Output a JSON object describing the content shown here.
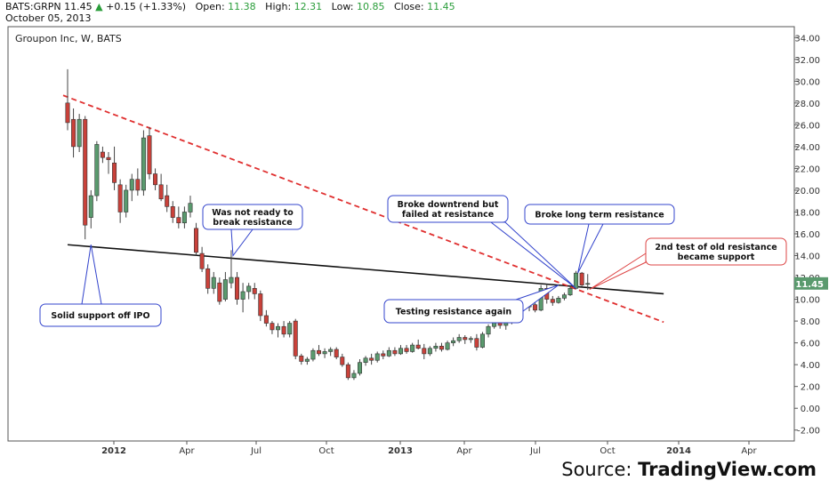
{
  "header": {
    "symbol": "BATS:GRPN",
    "last": "11.45",
    "change_arrow": "▲",
    "change": "+0.15 (+1.33%)",
    "open_label": "Open:",
    "open": "11.38",
    "high_label": "High:",
    "high": "12.31",
    "low_label": "Low:",
    "low": "10.85",
    "close_label": "Close:",
    "close": "11.45",
    "date": "October 05, 2013"
  },
  "source": {
    "prefix": "Source: ",
    "brand": "TradingView.com"
  },
  "chart_data": {
    "type": "candlestick",
    "title": "Groupon Inc, W, BATS",
    "ylim": [
      -3,
      35
    ],
    "y_ticks": [
      "-2.00",
      "0.00",
      "2.00",
      "4.00",
      "6.00",
      "8.00",
      "10.00",
      "12.00",
      "14.00",
      "16.00",
      "18.00",
      "20.00",
      "22.00",
      "24.00",
      "26.00",
      "28.00",
      "30.00",
      "32.00",
      "34.00"
    ],
    "x_ticks": [
      "2012",
      "Apr",
      "Jul",
      "Oct",
      "2013",
      "Apr",
      "Jul",
      "Oct",
      "2014",
      "Apr"
    ],
    "last_price_label": "11.45",
    "colors": {
      "up": "#5a9a6e",
      "down": "#c9413a",
      "wick": "#444444",
      "trend": "#e03030",
      "support": "#111111",
      "annot_blue": "#3344cc",
      "annot_red": "#dd4444",
      "price_tag": "#5a9a6e"
    },
    "candles": [
      {
        "o": 28.0,
        "h": 31.1,
        "l": 25.5,
        "c": 26.2
      },
      {
        "o": 26.5,
        "h": 27.5,
        "l": 23.0,
        "c": 24.0
      },
      {
        "o": 24.0,
        "h": 27.0,
        "l": 23.5,
        "c": 26.5
      },
      {
        "o": 26.5,
        "h": 26.8,
        "l": 15.5,
        "c": 16.8
      },
      {
        "o": 17.5,
        "h": 20.0,
        "l": 16.5,
        "c": 19.5
      },
      {
        "o": 19.5,
        "h": 24.5,
        "l": 19.0,
        "c": 24.2
      },
      {
        "o": 23.5,
        "h": 24.0,
        "l": 22.5,
        "c": 23.0
      },
      {
        "o": 23.0,
        "h": 23.5,
        "l": 21.5,
        "c": 22.8
      },
      {
        "o": 22.5,
        "h": 24.0,
        "l": 20.0,
        "c": 20.7
      },
      {
        "o": 20.5,
        "h": 21.0,
        "l": 17.0,
        "c": 18.0
      },
      {
        "o": 18.0,
        "h": 20.5,
        "l": 17.5,
        "c": 20.0
      },
      {
        "o": 20.0,
        "h": 21.5,
        "l": 19.0,
        "c": 21.0
      },
      {
        "o": 21.0,
        "h": 22.0,
        "l": 19.5,
        "c": 20.0
      },
      {
        "o": 20.0,
        "h": 25.5,
        "l": 19.5,
        "c": 24.8
      },
      {
        "o": 25.0,
        "h": 25.8,
        "l": 21.0,
        "c": 21.5
      },
      {
        "o": 21.5,
        "h": 22.0,
        "l": 20.0,
        "c": 20.5
      },
      {
        "o": 20.5,
        "h": 21.5,
        "l": 19.0,
        "c": 19.2
      },
      {
        "o": 19.5,
        "h": 20.5,
        "l": 18.0,
        "c": 18.5
      },
      {
        "o": 18.5,
        "h": 19.0,
        "l": 17.0,
        "c": 17.5
      },
      {
        "o": 17.5,
        "h": 18.5,
        "l": 16.5,
        "c": 17.0
      },
      {
        "o": 17.0,
        "h": 18.5,
        "l": 16.5,
        "c": 18.0
      },
      {
        "o": 18.0,
        "h": 19.5,
        "l": 17.5,
        "c": 18.8
      },
      {
        "o": 16.5,
        "h": 17.0,
        "l": 14.0,
        "c": 14.3
      },
      {
        "o": 14.2,
        "h": 14.8,
        "l": 12.5,
        "c": 12.8
      },
      {
        "o": 12.8,
        "h": 13.2,
        "l": 10.5,
        "c": 11.0
      },
      {
        "o": 11.0,
        "h": 12.5,
        "l": 10.5,
        "c": 12.0
      },
      {
        "o": 11.5,
        "h": 12.0,
        "l": 9.5,
        "c": 9.8
      },
      {
        "o": 10.0,
        "h": 12.5,
        "l": 9.8,
        "c": 11.8
      },
      {
        "o": 11.5,
        "h": 14.5,
        "l": 11.0,
        "c": 12.0
      },
      {
        "o": 12.0,
        "h": 12.5,
        "l": 9.5,
        "c": 10.0
      },
      {
        "o": 10.0,
        "h": 11.5,
        "l": 8.8,
        "c": 10.7
      },
      {
        "o": 10.7,
        "h": 11.5,
        "l": 10.0,
        "c": 11.2
      },
      {
        "o": 11.0,
        "h": 11.5,
        "l": 10.0,
        "c": 10.5
      },
      {
        "o": 10.5,
        "h": 10.8,
        "l": 8.0,
        "c": 8.5
      },
      {
        "o": 8.5,
        "h": 9.0,
        "l": 7.5,
        "c": 7.8
      },
      {
        "o": 7.8,
        "h": 8.0,
        "l": 6.8,
        "c": 7.2
      },
      {
        "o": 7.2,
        "h": 7.8,
        "l": 6.5,
        "c": 7.5
      },
      {
        "o": 7.5,
        "h": 8.0,
        "l": 6.5,
        "c": 6.8
      },
      {
        "o": 6.8,
        "h": 8.0,
        "l": 6.5,
        "c": 7.8
      },
      {
        "o": 8.0,
        "h": 8.2,
        "l": 4.5,
        "c": 4.8
      },
      {
        "o": 4.8,
        "h": 5.0,
        "l": 4.0,
        "c": 4.3
      },
      {
        "o": 4.3,
        "h": 4.7,
        "l": 4.0,
        "c": 4.5
      },
      {
        "o": 4.5,
        "h": 5.5,
        "l": 4.3,
        "c": 5.3
      },
      {
        "o": 5.3,
        "h": 5.8,
        "l": 4.8,
        "c": 5.0
      },
      {
        "o": 5.0,
        "h": 5.5,
        "l": 4.6,
        "c": 5.2
      },
      {
        "o": 5.2,
        "h": 5.6,
        "l": 4.8,
        "c": 5.4
      },
      {
        "o": 5.4,
        "h": 5.6,
        "l": 4.5,
        "c": 4.7
      },
      {
        "o": 4.7,
        "h": 5.0,
        "l": 3.8,
        "c": 4.0
      },
      {
        "o": 4.0,
        "h": 4.2,
        "l": 2.6,
        "c": 2.8
      },
      {
        "o": 2.8,
        "h": 3.5,
        "l": 2.6,
        "c": 3.2
      },
      {
        "o": 3.2,
        "h": 4.5,
        "l": 3.0,
        "c": 4.2
      },
      {
        "o": 4.2,
        "h": 4.8,
        "l": 3.9,
        "c": 4.6
      },
      {
        "o": 4.6,
        "h": 5.0,
        "l": 4.0,
        "c": 4.4
      },
      {
        "o": 4.4,
        "h": 5.2,
        "l": 4.2,
        "c": 5.0
      },
      {
        "o": 5.0,
        "h": 5.3,
        "l": 4.5,
        "c": 4.8
      },
      {
        "o": 4.8,
        "h": 5.6,
        "l": 4.7,
        "c": 5.3
      },
      {
        "o": 5.3,
        "h": 5.6,
        "l": 4.8,
        "c": 5.0
      },
      {
        "o": 5.0,
        "h": 5.8,
        "l": 4.9,
        "c": 5.5
      },
      {
        "o": 5.5,
        "h": 5.8,
        "l": 5.0,
        "c": 5.2
      },
      {
        "o": 5.2,
        "h": 6.0,
        "l": 5.1,
        "c": 5.8
      },
      {
        "o": 5.8,
        "h": 6.3,
        "l": 5.4,
        "c": 5.5
      },
      {
        "o": 5.5,
        "h": 5.9,
        "l": 4.5,
        "c": 5.0
      },
      {
        "o": 5.0,
        "h": 5.7,
        "l": 4.8,
        "c": 5.5
      },
      {
        "o": 5.5,
        "h": 6.0,
        "l": 5.2,
        "c": 5.7
      },
      {
        "o": 5.7,
        "h": 6.0,
        "l": 5.2,
        "c": 5.4
      },
      {
        "o": 5.4,
        "h": 6.2,
        "l": 5.3,
        "c": 6.0
      },
      {
        "o": 6.0,
        "h": 6.5,
        "l": 5.7,
        "c": 6.2
      },
      {
        "o": 6.2,
        "h": 6.8,
        "l": 6.0,
        "c": 6.5
      },
      {
        "o": 6.5,
        "h": 6.7,
        "l": 5.9,
        "c": 6.3
      },
      {
        "o": 6.3,
        "h": 6.6,
        "l": 6.0,
        "c": 6.4
      },
      {
        "o": 6.4,
        "h": 6.8,
        "l": 5.3,
        "c": 5.6
      },
      {
        "o": 5.6,
        "h": 7.0,
        "l": 5.5,
        "c": 6.8
      },
      {
        "o": 6.8,
        "h": 7.7,
        "l": 6.5,
        "c": 7.5
      },
      {
        "o": 7.5,
        "h": 8.3,
        "l": 7.3,
        "c": 8.1
      },
      {
        "o": 8.1,
        "h": 8.4,
        "l": 7.3,
        "c": 7.6
      },
      {
        "o": 7.6,
        "h": 8.2,
        "l": 7.2,
        "c": 7.9
      },
      {
        "o": 7.9,
        "h": 9.0,
        "l": 7.7,
        "c": 8.8
      },
      {
        "o": 8.8,
        "h": 9.8,
        "l": 8.6,
        "c": 9.6
      },
      {
        "o": 9.6,
        "h": 9.9,
        "l": 9.0,
        "c": 9.3
      },
      {
        "o": 9.3,
        "h": 9.7,
        "l": 8.9,
        "c": 9.5
      },
      {
        "o": 9.5,
        "h": 9.8,
        "l": 8.8,
        "c": 9.0
      },
      {
        "o": 9.0,
        "h": 11.3,
        "l": 8.9,
        "c": 11.0
      },
      {
        "o": 11.0,
        "h": 11.4,
        "l": 9.6,
        "c": 10.0
      },
      {
        "o": 10.0,
        "h": 10.3,
        "l": 9.4,
        "c": 9.7
      },
      {
        "o": 9.7,
        "h": 10.3,
        "l": 9.6,
        "c": 10.1
      },
      {
        "o": 10.1,
        "h": 10.6,
        "l": 9.9,
        "c": 10.4
      },
      {
        "o": 10.4,
        "h": 11.3,
        "l": 10.3,
        "c": 11.0
      },
      {
        "o": 11.0,
        "h": 12.6,
        "l": 10.9,
        "c": 12.4
      },
      {
        "o": 12.4,
        "h": 12.5,
        "l": 11.2,
        "c": 11.3
      },
      {
        "o": 11.38,
        "h": 12.31,
        "l": 10.85,
        "c": 11.45
      }
    ],
    "lines": {
      "support": {
        "x_from": 0,
        "y_from": 15.0,
        "x_to": 102,
        "y_to": 10.5
      },
      "downtrend": {
        "x_from": 0,
        "y_from": 28.7,
        "x_to": 102,
        "y_to": 7.9
      }
    },
    "annotations": [
      {
        "id": "solid-support",
        "lines": [
          "Solid support off IPO"
        ],
        "style": "blue"
      },
      {
        "id": "not-ready",
        "lines": [
          "Was not ready to",
          "break resistance"
        ],
        "style": "blue"
      },
      {
        "id": "broke-downtrend",
        "lines": [
          "Broke downtrend but",
          "failed at resistance"
        ],
        "style": "blue"
      },
      {
        "id": "broke-long-term",
        "lines": [
          "Broke long term resistance"
        ],
        "style": "blue"
      },
      {
        "id": "testing-resistance",
        "lines": [
          "Testing resistance again"
        ],
        "style": "blue"
      },
      {
        "id": "second-test",
        "lines": [
          "2nd test of old resistance",
          "became support"
        ],
        "style": "red"
      }
    ]
  }
}
